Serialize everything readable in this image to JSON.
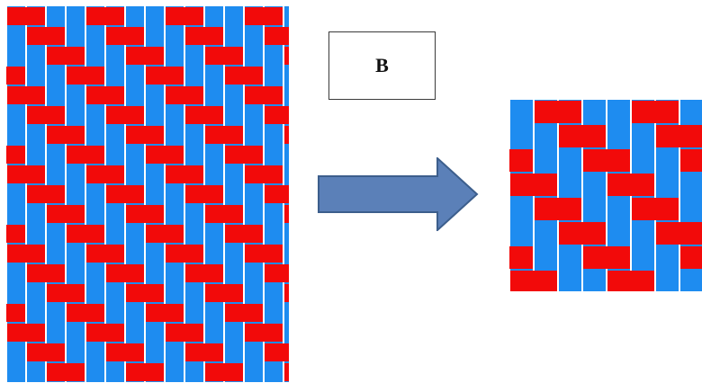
{
  "label": {
    "text": "B"
  },
  "colors": {
    "warp": "#1e8cf0",
    "weft": "#f20a0a",
    "gap": "#ffffff",
    "arrow_fill": "#5b80b8",
    "arrow_stroke": "#3c5e8c",
    "box_border": "#3a3a3a"
  },
  "icons": {
    "arrow": "right-arrow-icon"
  }
}
